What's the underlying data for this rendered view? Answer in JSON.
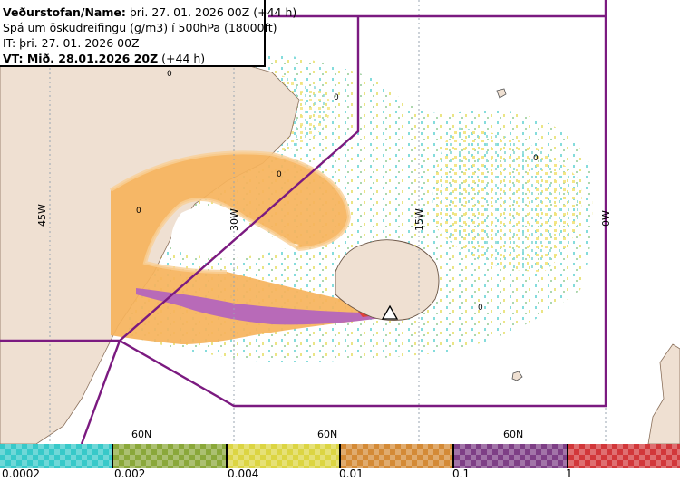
{
  "header": {
    "line1_bold": "Veðurstofan/Name:",
    "line1_rest": " þri. 27. 01. 2026 00Z (+44 h)",
    "line2": "Spá um öskudreifingu (g/m3) í 500hPa (18000ft)",
    "line3": "IT: þri. 27. 01. 2026 00Z",
    "line4_bold": "VT: Mið. 28.01.2026 20Z",
    "line4_rest": " (+44 h)"
  },
  "map": {
    "meridian_labels": [
      "45W",
      "30W",
      "15W",
      "0W"
    ],
    "latitude_labels": [
      "60N",
      "60N",
      "60N"
    ],
    "contour_labels": [
      "0",
      "0",
      "0",
      "0",
      "0",
      "0"
    ],
    "colors": {
      "land": "#efe0d2",
      "ocean": "#ffffff",
      "domain_outline": "#7b1a80",
      "ash_orange": "#f6b35c",
      "ash_purple": "#b86ab8",
      "ash_red": "#e0403a"
    }
  },
  "legend": {
    "colors": [
      "#37c9c9",
      "#8aa83a",
      "#dcd542",
      "#d48a36",
      "#7e3f86",
      "#d2373a"
    ],
    "labels": [
      "0.0002",
      "0.002",
      "0.004",
      "0.01",
      "0.1",
      "1"
    ]
  }
}
